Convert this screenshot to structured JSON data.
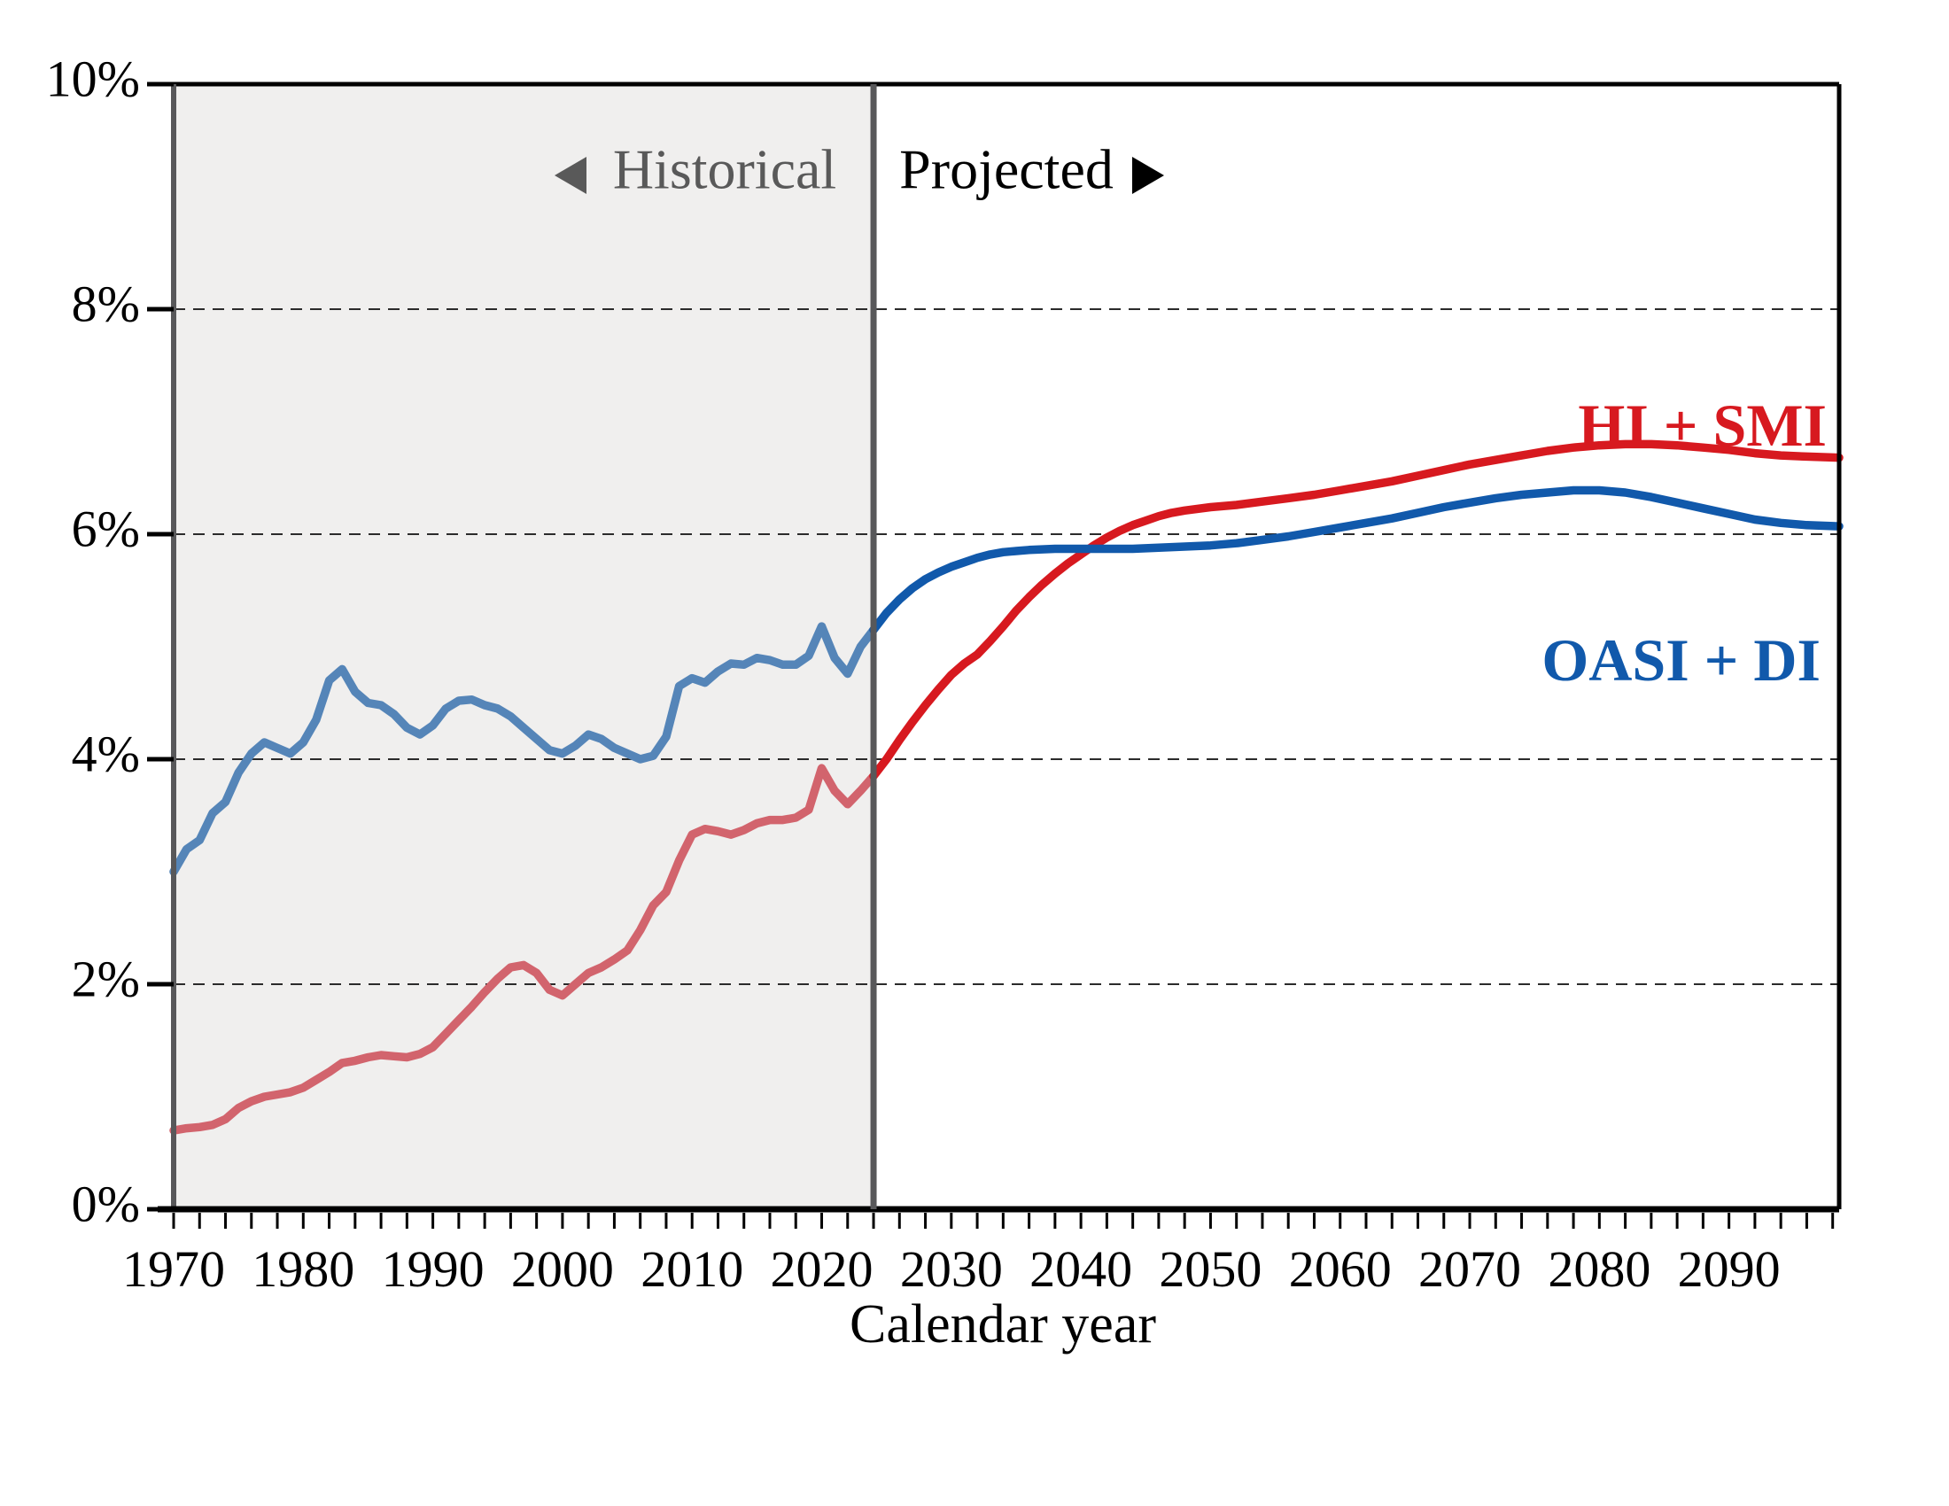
{
  "chart_data": {
    "type": "line",
    "title": "",
    "xlabel": "Calendar year",
    "ylabel": "",
    "x_range": [
      1970,
      2098.5
    ],
    "y_range": [
      0,
      10
    ],
    "y_ticks": [
      0,
      2,
      4,
      6,
      8,
      10
    ],
    "y_tick_labels": [
      "0%",
      "2%",
      "4%",
      "6%",
      "8%",
      "10%"
    ],
    "gridlines_y": [
      2,
      4,
      6,
      8
    ],
    "x_major_ticks": [
      1970,
      1980,
      1990,
      2000,
      2010,
      2020,
      2030,
      2040,
      2050,
      2060,
      2070,
      2080,
      2090
    ],
    "x_minor_tick_step": 2,
    "boundary_year": 2024,
    "legend_position": "inline-right",
    "grid": "dashed-horizontal",
    "series": [
      {
        "name": "OASI + DI",
        "historical": [
          [
            1970,
            3.0
          ],
          [
            1971,
            3.2
          ],
          [
            1972,
            3.28
          ],
          [
            1973,
            3.52
          ],
          [
            1974,
            3.62
          ],
          [
            1975,
            3.88
          ],
          [
            1976,
            4.05
          ],
          [
            1977,
            4.15
          ],
          [
            1978,
            4.1
          ],
          [
            1979,
            4.05
          ],
          [
            1980,
            4.15
          ],
          [
            1981,
            4.35
          ],
          [
            1982,
            4.7
          ],
          [
            1983,
            4.8
          ],
          [
            1984,
            4.6
          ],
          [
            1985,
            4.5
          ],
          [
            1986,
            4.48
          ],
          [
            1987,
            4.4
          ],
          [
            1988,
            4.28
          ],
          [
            1989,
            4.22
          ],
          [
            1990,
            4.3
          ],
          [
            1991,
            4.45
          ],
          [
            1992,
            4.52
          ],
          [
            1993,
            4.53
          ],
          [
            1994,
            4.48
          ],
          [
            1995,
            4.45
          ],
          [
            1996,
            4.38
          ],
          [
            1997,
            4.28
          ],
          [
            1998,
            4.18
          ],
          [
            1999,
            4.08
          ],
          [
            2000,
            4.05
          ],
          [
            2001,
            4.12
          ],
          [
            2002,
            4.22
          ],
          [
            2003,
            4.18
          ],
          [
            2004,
            4.1
          ],
          [
            2005,
            4.05
          ],
          [
            2006,
            4.0
          ],
          [
            2007,
            4.03
          ],
          [
            2008,
            4.2
          ],
          [
            2009,
            4.65
          ],
          [
            2010,
            4.72
          ],
          [
            2011,
            4.68
          ],
          [
            2012,
            4.78
          ],
          [
            2013,
            4.85
          ],
          [
            2014,
            4.84
          ],
          [
            2015,
            4.9
          ],
          [
            2016,
            4.88
          ],
          [
            2017,
            4.84
          ],
          [
            2018,
            4.84
          ],
          [
            2019,
            4.92
          ],
          [
            2020,
            5.18
          ],
          [
            2021,
            4.9
          ],
          [
            2022,
            4.76
          ],
          [
            2023,
            5.0
          ],
          [
            2024,
            5.15
          ]
        ],
        "projected": [
          [
            2024,
            5.15
          ],
          [
            2025,
            5.3
          ],
          [
            2026,
            5.42
          ],
          [
            2027,
            5.52
          ],
          [
            2028,
            5.6
          ],
          [
            2029,
            5.66
          ],
          [
            2030,
            5.71
          ],
          [
            2031,
            5.75
          ],
          [
            2032,
            5.79
          ],
          [
            2033,
            5.82
          ],
          [
            2034,
            5.84
          ],
          [
            2035,
            5.85
          ],
          [
            2036,
            5.86
          ],
          [
            2038,
            5.87
          ],
          [
            2040,
            5.87
          ],
          [
            2042,
            5.87
          ],
          [
            2044,
            5.87
          ],
          [
            2046,
            5.88
          ],
          [
            2048,
            5.89
          ],
          [
            2050,
            5.9
          ],
          [
            2052,
            5.92
          ],
          [
            2054,
            5.95
          ],
          [
            2056,
            5.98
          ],
          [
            2058,
            6.02
          ],
          [
            2060,
            6.06
          ],
          [
            2062,
            6.1
          ],
          [
            2064,
            6.14
          ],
          [
            2066,
            6.19
          ],
          [
            2068,
            6.24
          ],
          [
            2070,
            6.28
          ],
          [
            2072,
            6.32
          ],
          [
            2074,
            6.35
          ],
          [
            2076,
            6.37
          ],
          [
            2078,
            6.39
          ],
          [
            2080,
            6.39
          ],
          [
            2082,
            6.37
          ],
          [
            2084,
            6.33
          ],
          [
            2086,
            6.28
          ],
          [
            2088,
            6.23
          ],
          [
            2090,
            6.18
          ],
          [
            2092,
            6.13
          ],
          [
            2094,
            6.1
          ],
          [
            2096,
            6.08
          ],
          [
            2098.5,
            6.07
          ]
        ]
      },
      {
        "name": "HI + SMI",
        "historical": [
          [
            1970,
            0.7
          ],
          [
            1971,
            0.72
          ],
          [
            1972,
            0.73
          ],
          [
            1973,
            0.75
          ],
          [
            1974,
            0.8
          ],
          [
            1975,
            0.9
          ],
          [
            1976,
            0.96
          ],
          [
            1977,
            1.0
          ],
          [
            1978,
            1.02
          ],
          [
            1979,
            1.04
          ],
          [
            1980,
            1.08
          ],
          [
            1981,
            1.15
          ],
          [
            1982,
            1.22
          ],
          [
            1983,
            1.3
          ],
          [
            1984,
            1.32
          ],
          [
            1985,
            1.35
          ],
          [
            1986,
            1.37
          ],
          [
            1987,
            1.36
          ],
          [
            1988,
            1.35
          ],
          [
            1989,
            1.38
          ],
          [
            1990,
            1.44
          ],
          [
            1991,
            1.56
          ],
          [
            1992,
            1.68
          ],
          [
            1993,
            1.8
          ],
          [
            1994,
            1.93
          ],
          [
            1995,
            2.05
          ],
          [
            1996,
            2.15
          ],
          [
            1997,
            2.17
          ],
          [
            1998,
            2.1
          ],
          [
            1999,
            1.95
          ],
          [
            2000,
            1.9
          ],
          [
            2001,
            2.0
          ],
          [
            2002,
            2.1
          ],
          [
            2003,
            2.15
          ],
          [
            2004,
            2.22
          ],
          [
            2005,
            2.3
          ],
          [
            2006,
            2.48
          ],
          [
            2007,
            2.7
          ],
          [
            2008,
            2.82
          ],
          [
            2009,
            3.1
          ],
          [
            2010,
            3.33
          ],
          [
            2011,
            3.38
          ],
          [
            2012,
            3.36
          ],
          [
            2013,
            3.33
          ],
          [
            2014,
            3.37
          ],
          [
            2015,
            3.43
          ],
          [
            2016,
            3.46
          ],
          [
            2017,
            3.46
          ],
          [
            2018,
            3.48
          ],
          [
            2019,
            3.55
          ],
          [
            2020,
            3.92
          ],
          [
            2021,
            3.72
          ],
          [
            2022,
            3.6
          ],
          [
            2023,
            3.72
          ],
          [
            2024,
            3.85
          ]
        ],
        "projected": [
          [
            2024,
            3.85
          ],
          [
            2025,
            4.0
          ],
          [
            2026,
            4.17
          ],
          [
            2027,
            4.33
          ],
          [
            2028,
            4.48
          ],
          [
            2029,
            4.62
          ],
          [
            2030,
            4.75
          ],
          [
            2031,
            4.85
          ],
          [
            2032,
            4.93
          ],
          [
            2033,
            5.05
          ],
          [
            2034,
            5.18
          ],
          [
            2035,
            5.32
          ],
          [
            2036,
            5.44
          ],
          [
            2037,
            5.55
          ],
          [
            2038,
            5.65
          ],
          [
            2039,
            5.74
          ],
          [
            2040,
            5.82
          ],
          [
            2041,
            5.9
          ],
          [
            2042,
            5.97
          ],
          [
            2043,
            6.03
          ],
          [
            2044,
            6.08
          ],
          [
            2045,
            6.12
          ],
          [
            2046,
            6.16
          ],
          [
            2047,
            6.19
          ],
          [
            2048,
            6.21
          ],
          [
            2050,
            6.24
          ],
          [
            2052,
            6.26
          ],
          [
            2054,
            6.29
          ],
          [
            2056,
            6.32
          ],
          [
            2058,
            6.35
          ],
          [
            2060,
            6.39
          ],
          [
            2062,
            6.43
          ],
          [
            2064,
            6.47
          ],
          [
            2066,
            6.52
          ],
          [
            2068,
            6.57
          ],
          [
            2070,
            6.62
          ],
          [
            2072,
            6.66
          ],
          [
            2074,
            6.7
          ],
          [
            2076,
            6.74
          ],
          [
            2078,
            6.77
          ],
          [
            2080,
            6.79
          ],
          [
            2082,
            6.8
          ],
          [
            2084,
            6.8
          ],
          [
            2086,
            6.79
          ],
          [
            2088,
            6.77
          ],
          [
            2090,
            6.75
          ],
          [
            2092,
            6.72
          ],
          [
            2094,
            6.7
          ],
          [
            2096,
            6.69
          ],
          [
            2098.5,
            6.68
          ]
        ]
      }
    ]
  },
  "labels": {
    "historical": "Historical",
    "projected": "Projected",
    "series_red": "HI + SMI",
    "series_blue": "OASI + DI",
    "x_axis_title": "Calendar year"
  },
  "colors": {
    "historical_background": "#f0efee",
    "projected_background": "#ffffff",
    "blue_historical": "#5585b8",
    "blue_projected": "#1159ab",
    "red_historical": "#d2646d",
    "red_projected": "#d7191f",
    "divider_gray": "#58585a",
    "historical_text_gray": "#595959",
    "projected_text_black": "#000000",
    "gridline": "#2b2b2b",
    "axis_black": "#000000"
  }
}
